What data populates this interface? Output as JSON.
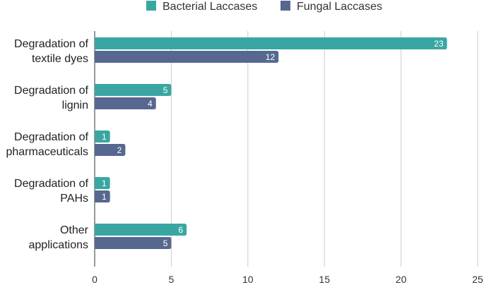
{
  "chart_data": {
    "type": "bar",
    "orientation": "horizontal",
    "categories": [
      [
        "Degradation of",
        "textile dyes"
      ],
      [
        "Degradation of",
        "lignin"
      ],
      [
        "Degradation of",
        "pharmaceuticals"
      ],
      [
        "Degradation of",
        "PAHs"
      ],
      [
        "Other",
        "applications"
      ]
    ],
    "series": [
      {
        "name": "Bacterial Laccases",
        "color": "#3aa6a2",
        "values": [
          23,
          5,
          1,
          1,
          6
        ]
      },
      {
        "name": "Fungal Laccases",
        "color": "#56688f",
        "values": [
          12,
          4,
          2,
          1,
          5
        ]
      }
    ],
    "xlim": [
      0,
      25
    ],
    "xticks": [
      0,
      5,
      10,
      15,
      20,
      25
    ],
    "grid": "vertical",
    "legend_position": "top",
    "data_labels": true
  }
}
